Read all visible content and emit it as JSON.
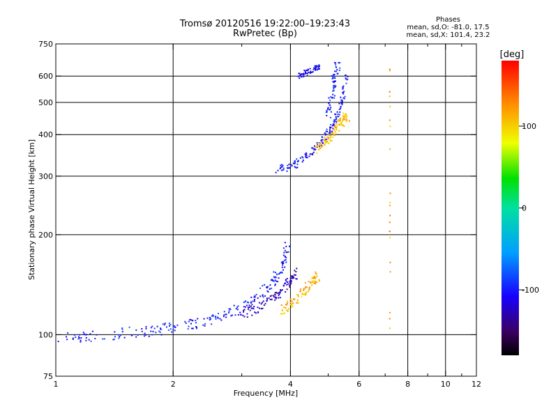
{
  "title": "Tromsø 20120516 19:22:00–19:23:43",
  "subtitle": "RwPretec (Bp)",
  "phase_stats": {
    "title": "Phases",
    "line1": "mean, sd,O: -81.0, 17.5",
    "line2": "mean, sd,X: 101.4, 23.2"
  },
  "colorbar": {
    "unit": "[deg]",
    "range": [
      -180,
      180
    ],
    "ticks": [
      {
        "value": 100,
        "label": "100"
      },
      {
        "value": 0,
        "label": "0"
      },
      {
        "value": -100,
        "label": "-100"
      }
    ]
  },
  "chart_data": {
    "type": "scatter",
    "xlabel": "Frequency [MHz]",
    "ylabel": "Stationary phase Virtual Height [km]",
    "xscale": "log",
    "yscale": "log",
    "xlim": [
      1,
      12
    ],
    "ylim": [
      75,
      750
    ],
    "grid": true,
    "x_ticks": [
      "1",
      "2",
      "4",
      "6",
      "8",
      "10",
      "12"
    ],
    "x_minor_ticks": [
      "3",
      "5",
      "7",
      "9",
      "11"
    ],
    "x_gridlines": [
      2,
      4,
      6,
      8,
      10
    ],
    "y_ticks": [
      "75",
      "100",
      "200",
      "300",
      "400",
      "500",
      "600",
      "750"
    ],
    "y_gridlines": [
      100,
      200,
      300,
      400,
      500,
      600
    ],
    "series": [
      {
        "trace": [
          [
            1.0,
            97
          ],
          [
            1.2,
            99
          ],
          [
            1.5,
            101
          ],
          [
            1.8,
            103
          ],
          [
            2.0,
            105
          ],
          [
            2.3,
            108
          ],
          [
            2.6,
            112
          ],
          [
            2.9,
            118
          ],
          [
            3.2,
            126
          ],
          [
            3.5,
            138
          ],
          [
            3.7,
            150
          ],
          [
            3.85,
            165
          ],
          [
            3.95,
            185
          ]
        ],
        "color_deg": -100,
        "spread": 0.035
      },
      {
        "trace": [
          [
            3.0,
            115
          ],
          [
            3.3,
            120
          ],
          [
            3.6,
            128
          ],
          [
            3.8,
            137
          ],
          [
            4.0,
            145
          ],
          [
            4.15,
            155
          ]
        ],
        "color_deg": -130,
        "spread": 0.03
      },
      {
        "trace": [
          [
            3.8,
            118
          ],
          [
            4.0,
            123
          ],
          [
            4.2,
            130
          ],
          [
            4.4,
            138
          ],
          [
            4.6,
            145
          ],
          [
            4.7,
            150
          ]
        ],
        "color_deg": 110,
        "spread": 0.03
      },
      {
        "trace": [
          [
            3.7,
            315
          ],
          [
            4.0,
            320
          ],
          [
            4.3,
            335
          ],
          [
            4.6,
            360
          ],
          [
            4.9,
            390
          ],
          [
            5.1,
            420
          ],
          [
            5.3,
            460
          ],
          [
            5.45,
            520
          ],
          [
            5.55,
            600
          ]
        ],
        "color_deg": -105,
        "spread": 0.025
      },
      {
        "trace": [
          [
            4.6,
            360
          ],
          [
            4.9,
            380
          ],
          [
            5.1,
            400
          ],
          [
            5.3,
            420
          ],
          [
            5.45,
            440
          ],
          [
            5.6,
            455
          ]
        ],
        "color_deg": 110,
        "spread": 0.03
      },
      {
        "trace": [
          [
            4.2,
            600
          ],
          [
            4.4,
            615
          ],
          [
            4.6,
            630
          ],
          [
            4.75,
            640
          ]
        ],
        "color_deg": -110,
        "spread": 0.02
      },
      {
        "trace": [
          [
            5.0,
            450
          ],
          [
            5.1,
            520
          ],
          [
            5.2,
            600
          ],
          [
            5.3,
            650
          ]
        ],
        "color_deg": -95,
        "spread": 0.03
      },
      {
        "trace": [
          [
            7.2,
            98
          ],
          [
            7.2,
            650
          ]
        ],
        "color_deg": 120,
        "spread": 0.005
      }
    ]
  }
}
